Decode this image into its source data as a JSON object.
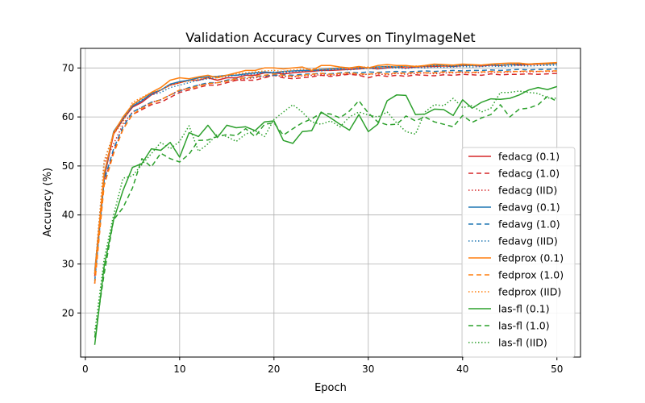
{
  "chart_data": {
    "type": "line",
    "title": "Validation Accuracy Curves on TinyImageNet",
    "xlabel": "Epoch",
    "ylabel": "Accuracy (%)",
    "xlim": [
      -0.5,
      52.5
    ],
    "ylim": [
      11,
      74
    ],
    "xticks": [
      0,
      10,
      20,
      30,
      40,
      50
    ],
    "yticks": [
      20,
      30,
      40,
      50,
      60,
      70
    ],
    "grid": true,
    "legend_position": "lower-right",
    "x": [
      1,
      2,
      3,
      4,
      5,
      6,
      7,
      8,
      9,
      10,
      11,
      12,
      13,
      14,
      15,
      16,
      17,
      18,
      19,
      20,
      21,
      22,
      23,
      24,
      25,
      26,
      27,
      28,
      29,
      30,
      31,
      32,
      33,
      34,
      35,
      36,
      37,
      38,
      39,
      40,
      41,
      42,
      43,
      44,
      45,
      46,
      47,
      48,
      49,
      50
    ],
    "series": [
      {
        "name": "fedacg (0.1)",
        "color": "#d62728",
        "dash": "solid",
        "values": [
          27.5,
          47.5,
          56.5,
          59.5,
          62.0,
          63.0,
          64.5,
          65.5,
          66.5,
          67.0,
          67.5,
          67.5,
          68.0,
          67.5,
          68.0,
          68.0,
          68.5,
          68.5,
          69.0,
          69.0,
          68.8,
          69.0,
          69.2,
          69.3,
          69.5,
          69.5,
          69.6,
          69.7,
          69.8,
          70.0,
          69.8,
          70.0,
          70.2,
          70.0,
          70.2,
          70.3,
          70.3,
          70.4,
          70.3,
          70.5,
          70.5,
          70.4,
          70.6,
          70.5,
          70.7,
          70.6,
          70.7,
          70.8,
          70.8,
          70.9
        ]
      },
      {
        "name": "fedacg (1.0)",
        "color": "#d62728",
        "dash": "6,4",
        "values": [
          26.0,
          46.5,
          53.0,
          57.5,
          60.5,
          61.5,
          62.5,
          63.0,
          64.0,
          65.0,
          65.5,
          66.0,
          66.5,
          66.5,
          67.0,
          67.5,
          67.5,
          67.5,
          68.0,
          68.5,
          68.0,
          67.8,
          68.0,
          68.2,
          68.5,
          68.3,
          68.5,
          68.7,
          68.5,
          68.0,
          68.5,
          68.3,
          68.5,
          68.3,
          68.6,
          68.5,
          68.4,
          68.6,
          68.5,
          68.7,
          68.6,
          68.5,
          68.8,
          68.6,
          68.7,
          68.7,
          68.8,
          68.7,
          68.8,
          68.9
        ]
      },
      {
        "name": "fedacg (IID)",
        "color": "#d62728",
        "dash": "1.5,2.5",
        "values": [
          28.0,
          50.5,
          54.5,
          58.5,
          61.0,
          62.0,
          63.0,
          63.5,
          64.5,
          65.5,
          65.8,
          66.5,
          66.8,
          67.0,
          67.5,
          67.5,
          67.8,
          68.0,
          68.2,
          68.5,
          68.3,
          68.2,
          68.4,
          68.5,
          68.6,
          68.5,
          68.7,
          68.8,
          68.6,
          68.7,
          68.8,
          68.6,
          68.9,
          68.7,
          68.9,
          69.0,
          68.8,
          69.0,
          69.0,
          69.1,
          69.0,
          69.1,
          69.2,
          69.1,
          69.2,
          69.3,
          69.2,
          69.3,
          69.3,
          69.4
        ]
      },
      {
        "name": "fedavg (0.1)",
        "color": "#1f77b4",
        "dash": "solid",
        "values": [
          28.5,
          48.0,
          57.0,
          59.8,
          62.2,
          63.3,
          64.8,
          65.5,
          66.7,
          67.2,
          67.5,
          68.0,
          68.2,
          68.3,
          68.5,
          68.5,
          68.8,
          69.0,
          69.2,
          69.0,
          69.3,
          69.4,
          69.5,
          69.5,
          69.7,
          69.8,
          69.9,
          70.0,
          70.1,
          70.0,
          70.2,
          70.3,
          70.2,
          70.4,
          70.3,
          70.4,
          70.5,
          70.5,
          70.4,
          70.6,
          70.5,
          70.6,
          70.7,
          70.6,
          70.7,
          70.8,
          70.8,
          70.9,
          70.8,
          70.9
        ]
      },
      {
        "name": "fedavg (1.0)",
        "color": "#1f77b4",
        "dash": "6,4",
        "values": [
          26.5,
          47.0,
          53.5,
          58.0,
          61.0,
          62.0,
          63.0,
          63.5,
          64.5,
          65.3,
          66.0,
          66.5,
          67.0,
          67.0,
          67.5,
          67.8,
          68.0,
          68.2,
          68.4,
          68.5,
          68.6,
          68.5,
          68.7,
          68.8,
          68.9,
          68.8,
          69.0,
          69.1,
          69.0,
          69.2,
          69.1,
          69.2,
          69.3,
          69.2,
          69.3,
          69.4,
          69.3,
          69.4,
          69.5,
          69.4,
          69.5,
          69.5,
          69.6,
          69.5,
          69.6,
          69.7,
          69.6,
          69.7,
          69.7,
          69.8
        ]
      },
      {
        "name": "fedavg (IID)",
        "color": "#1f77b4",
        "dash": "1.5,2.5",
        "values": [
          28.0,
          51.0,
          56.5,
          59.5,
          62.5,
          63.5,
          64.5,
          65.0,
          66.0,
          66.5,
          67.0,
          67.5,
          67.8,
          68.0,
          68.3,
          68.5,
          68.6,
          68.8,
          69.0,
          69.2,
          69.0,
          69.3,
          69.4,
          69.5,
          69.4,
          69.6,
          69.7,
          69.6,
          69.8,
          69.9,
          69.8,
          70.0,
          70.0,
          69.9,
          70.1,
          70.0,
          70.2,
          70.1,
          70.2,
          70.3,
          70.2,
          70.3,
          70.4,
          70.3,
          70.4,
          70.5,
          70.4,
          70.5,
          70.5,
          70.6
        ]
      },
      {
        "name": "fedprox (0.1)",
        "color": "#ff7f0e",
        "dash": "solid",
        "values": [
          28.0,
          48.5,
          56.8,
          60.0,
          62.5,
          63.8,
          65.0,
          66.0,
          67.5,
          68.0,
          67.8,
          68.2,
          68.5,
          68.0,
          68.5,
          69.0,
          69.5,
          69.5,
          70.0,
          70.0,
          69.8,
          70.0,
          70.2,
          69.5,
          70.5,
          70.5,
          70.2,
          70.0,
          70.3,
          70.0,
          70.5,
          70.7,
          70.5,
          70.5,
          70.3,
          70.5,
          70.8,
          70.7,
          70.6,
          70.8,
          70.7,
          70.6,
          70.8,
          70.9,
          71.0,
          71.0,
          70.8,
          70.9,
          71.0,
          71.1
        ]
      },
      {
        "name": "fedprox (1.0)",
        "color": "#ff7f0e",
        "dash": "6,4",
        "values": [
          26.0,
          46.0,
          52.5,
          57.5,
          60.5,
          61.8,
          62.8,
          63.5,
          64.5,
          65.5,
          65.8,
          66.3,
          66.8,
          67.0,
          67.3,
          67.8,
          68.0,
          68.3,
          68.5,
          68.8,
          68.5,
          68.3,
          68.5,
          68.7,
          68.9,
          68.7,
          68.9,
          69.0,
          68.8,
          68.7,
          69.0,
          68.8,
          69.0,
          68.9,
          69.1,
          69.0,
          69.0,
          69.2,
          69.1,
          69.2,
          69.1,
          69.2,
          69.3,
          69.2,
          69.3,
          69.3,
          69.4,
          69.3,
          69.4,
          69.4
        ]
      },
      {
        "name": "fedprox (IID)",
        "color": "#ff7f0e",
        "dash": "1.5,2.5",
        "values": [
          28.0,
          51.0,
          56.5,
          59.0,
          63.0,
          64.0,
          65.0,
          65.5,
          66.5,
          67.0,
          67.3,
          67.8,
          68.0,
          68.3,
          68.5,
          68.8,
          69.0,
          69.2,
          69.4,
          69.5,
          69.3,
          69.6,
          69.7,
          69.8,
          69.7,
          69.9,
          70.0,
          69.9,
          70.1,
          70.2,
          70.1,
          70.3,
          70.2,
          70.3,
          70.4,
          70.3,
          70.5,
          70.4,
          70.5,
          70.6,
          70.5,
          70.6,
          70.7,
          70.6,
          70.7,
          70.8,
          70.7,
          70.8,
          70.8,
          70.9
        ]
      },
      {
        "name": "las-fl (0.1)",
        "color": "#2ca02c",
        "dash": "solid",
        "values": [
          13.5,
          29.5,
          39.0,
          45.0,
          49.7,
          50.5,
          53.5,
          53.2,
          54.8,
          51.8,
          56.8,
          56.0,
          58.3,
          55.8,
          58.3,
          57.8,
          58.0,
          57.2,
          59.0,
          59.2,
          55.2,
          54.6,
          57.0,
          57.2,
          61.0,
          59.8,
          58.5,
          57.3,
          60.5,
          57.0,
          58.5,
          63.3,
          64.5,
          64.4,
          60.5,
          60.6,
          61.6,
          61.5,
          60.3,
          63.5,
          61.8,
          63.0,
          63.7,
          63.6,
          63.8,
          64.5,
          65.5,
          66.0,
          65.6,
          66.2
        ]
      },
      {
        "name": "las-fl (1.0)",
        "color": "#2ca02c",
        "dash": "6,4",
        "values": [
          15.0,
          28.0,
          39.0,
          41.5,
          45.5,
          51.5,
          49.8,
          52.6,
          51.5,
          50.8,
          52.4,
          55.2,
          55.3,
          56.0,
          56.4,
          56.2,
          57.6,
          56.0,
          58.5,
          58.8,
          56.3,
          57.6,
          58.8,
          59.6,
          60.8,
          60.6,
          59.8,
          61.2,
          63.3,
          60.8,
          59.0,
          58.4,
          58.5,
          60.2,
          59.2,
          60.0,
          59.0,
          58.5,
          58.0,
          60.3,
          58.9,
          59.8,
          60.5,
          62.5,
          60.0,
          61.6,
          61.8,
          62.5,
          64.2,
          63.2
        ]
      },
      {
        "name": "las-fl (IID)",
        "color": "#2ca02c",
        "dash": "1.5,2.5",
        "values": [
          16.0,
          31.0,
          40.0,
          47.5,
          48.0,
          50.3,
          52.5,
          54.8,
          53.5,
          55.0,
          58.2,
          53.0,
          54.5,
          56.5,
          56.0,
          55.0,
          56.5,
          57.2,
          56.0,
          59.5,
          61.0,
          62.5,
          61.0,
          59.0,
          58.5,
          59.2,
          58.0,
          60.0,
          61.0,
          60.4,
          60.0,
          61.0,
          58.8,
          57.0,
          56.5,
          61.0,
          62.5,
          62.3,
          63.8,
          61.9,
          62.3,
          61.0,
          61.8,
          65.0,
          65.0,
          65.3,
          65.0,
          64.8,
          63.9,
          63.8
        ]
      }
    ]
  }
}
